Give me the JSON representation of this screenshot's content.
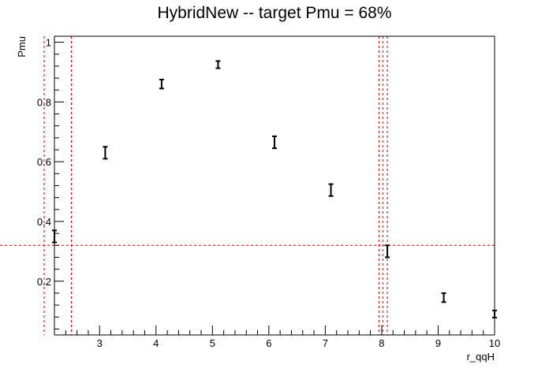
{
  "chart_data": {
    "type": "scatter",
    "title": "HybridNew -- target Pmu = 68%",
    "xlabel": "r_qqH",
    "ylabel": "Pmu",
    "xlim": [
      2.2,
      10.0
    ],
    "ylim": [
      0.02,
      1.02
    ],
    "x_ticks": [
      3,
      4,
      5,
      6,
      7,
      8,
      9,
      10
    ],
    "x_tick_labels": [
      "3",
      "4",
      "5",
      "6",
      "7",
      "8",
      "9",
      "10"
    ],
    "y_ticks": [
      0.2,
      0.4,
      0.6,
      0.8,
      1.0
    ],
    "y_tick_labels": [
      "0.2",
      "0.4",
      "0.6",
      "0.8",
      "1"
    ],
    "grid": false,
    "series": [
      {
        "marker": "error-bar",
        "color": "#000000",
        "points": [
          {
            "x": 2.2,
            "y": 0.35,
            "err": 0.02
          },
          {
            "x": 3.1,
            "y": 0.63,
            "err": 0.02
          },
          {
            "x": 4.1,
            "y": 0.86,
            "err": 0.015
          },
          {
            "x": 5.1,
            "y": 0.925,
            "err": 0.012
          },
          {
            "x": 6.1,
            "y": 0.665,
            "err": 0.02
          },
          {
            "x": 7.1,
            "y": 0.505,
            "err": 0.02
          },
          {
            "x": 8.1,
            "y": 0.3,
            "err": 0.02
          },
          {
            "x": 9.1,
            "y": 0.145,
            "err": 0.015
          },
          {
            "x": 10.0,
            "y": 0.09,
            "err": 0.012
          }
        ]
      }
    ],
    "reference_lines": {
      "color": "#cc0000",
      "style": "dashed",
      "horizontal": [
        0.32
      ],
      "vertical": [
        2.2,
        2.5,
        7.95,
        8.02,
        8.1
      ]
    }
  }
}
